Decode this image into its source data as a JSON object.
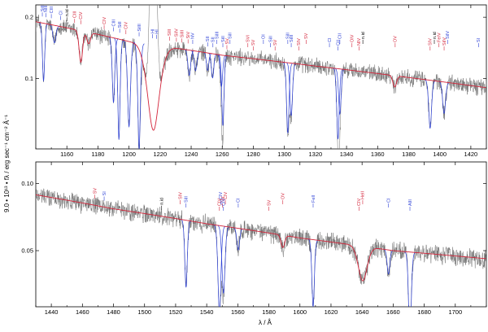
{
  "figure": {
    "ylabel": "9.0 • 10¹³ • fλ / erg sec⁻¹ cm⁻² Å⁻¹",
    "xlabel": "λ / Å"
  },
  "chart_data": [
    {
      "type": "line",
      "panel": "upper",
      "xlim": [
        1140,
        1430
      ],
      "ylim": [
        0.045,
        0.23
      ],
      "yscale": "log",
      "xticks": [
        1160,
        1180,
        1200,
        1220,
        1240,
        1260,
        1280,
        1300,
        1320,
        1340,
        1360,
        1380,
        1400,
        1420
      ],
      "yticks": [
        0.1,
        0.2
      ],
      "ytick_labels": [
        "0.1",
        "0.2"
      ],
      "colors": {
        "observation": "#6e6e6e",
        "model": "#d4243a",
        "ism": "#2b3fd6"
      },
      "model_anchors": [
        [
          1140,
          0.19
        ],
        [
          1200,
          0.152
        ],
        [
          1260,
          0.13
        ],
        [
          1320,
          0.115
        ],
        [
          1380,
          0.101
        ],
        [
          1430,
          0.09
        ]
      ],
      "absorption_lines": [
        {
          "x": 1145,
          "depth": 0.48,
          "w": 0.8,
          "c": "ism"
        },
        {
          "x": 1152,
          "depth": 0.18,
          "w": 1.0,
          "c": "ism"
        },
        {
          "x": 1169,
          "depth": 0.3,
          "w": 1.2,
          "c": "model"
        },
        {
          "x": 1174,
          "depth": 0.12,
          "w": 1.2,
          "c": "model"
        },
        {
          "x": 1190,
          "depth": 0.52,
          "w": 0.9,
          "c": "ism"
        },
        {
          "x": 1193.5,
          "depth": 0.68,
          "w": 0.9,
          "c": "ism"
        },
        {
          "x": 1200,
          "depth": 0.62,
          "w": 1.1,
          "c": "ism"
        },
        {
          "x": 1206.5,
          "depth": 0.7,
          "w": 1.0,
          "c": "ism"
        },
        {
          "x": 1215.7,
          "depth": 0.62,
          "w": 4.5,
          "c": "model"
        },
        {
          "x": 1238.8,
          "depth": 0.25,
          "w": 0.9,
          "c": "ism"
        },
        {
          "x": 1242.8,
          "depth": 0.2,
          "w": 0.9,
          "c": "ism"
        },
        {
          "x": 1250.6,
          "depth": 0.18,
          "w": 0.8,
          "c": "ism"
        },
        {
          "x": 1253.8,
          "depth": 0.24,
          "w": 0.8,
          "c": "ism"
        },
        {
          "x": 1259.5,
          "depth": 0.3,
          "w": 0.8,
          "c": "ism"
        },
        {
          "x": 1260.4,
          "depth": 0.55,
          "w": 0.8,
          "c": "ism"
        },
        {
          "x": 1302.2,
          "depth": 0.55,
          "w": 0.9,
          "c": "ism"
        },
        {
          "x": 1304.4,
          "depth": 0.45,
          "w": 0.9,
          "c": "ism"
        },
        {
          "x": 1334.5,
          "depth": 0.55,
          "w": 0.9,
          "c": "ism"
        },
        {
          "x": 1335.7,
          "depth": 0.4,
          "w": 0.9,
          "c": "ism"
        },
        {
          "x": 1371,
          "depth": 0.12,
          "w": 1.2,
          "c": "model"
        },
        {
          "x": 1393.8,
          "depth": 0.42,
          "w": 1.0,
          "c": "ism"
        },
        {
          "x": 1402.8,
          "depth": 0.3,
          "w": 1.0,
          "c": "ism"
        }
      ],
      "line_labels": [
        {
          "text": "SiII",
          "x": 1144.2,
          "c": "ism"
        },
        {
          "text": "NIII",
          "x": 1146.5,
          "c": "ism"
        },
        {
          "text": "CIII",
          "x": 1150,
          "c": "ism"
        },
        {
          "text": "CI",
          "x": 1156,
          "c": "ism"
        },
        {
          "text": "n.id",
          "x": 1160,
          "c": "black"
        },
        {
          "text": "CIII",
          "x": 1165,
          "c": "model"
        },
        {
          "text": "CIV",
          "x": 1169,
          "c": "model"
        },
        {
          "text": "CIV",
          "x": 1184,
          "c": "model"
        },
        {
          "text": "CIII",
          "x": 1190,
          "c": "ism"
        },
        {
          "text": "SiII",
          "x": 1194,
          "c": "ism"
        },
        {
          "text": "CIV",
          "x": 1198,
          "c": "model"
        },
        {
          "text": "SiIII",
          "x": 1206.5,
          "c": "ism"
        },
        {
          "text": "HI",
          "x": 1215.2,
          "c": "ism"
        },
        {
          "text": "HI",
          "x": 1217.8,
          "c": "ism"
        },
        {
          "text": "SIII",
          "x": 1226,
          "c": "model"
        },
        {
          "text": "SiIV",
          "x": 1230.5,
          "c": "model"
        },
        {
          "text": "SiIII",
          "x": 1234,
          "c": "model"
        },
        {
          "text": "SiV",
          "x": 1238,
          "c": "model"
        },
        {
          "text": "NV",
          "x": 1241,
          "c": "ism"
        },
        {
          "text": "SII",
          "x": 1250.6,
          "c": "ism"
        },
        {
          "text": "SII",
          "x": 1254,
          "c": "ism"
        },
        {
          "text": "SiIII",
          "x": 1256.5,
          "c": "ism"
        },
        {
          "text": "SiII",
          "x": 1260.4,
          "c": "ism"
        },
        {
          "text": "SV",
          "x": 1263,
          "c": "model"
        },
        {
          "text": "SiII",
          "x": 1265,
          "c": "ism"
        },
        {
          "text": "SVI",
          "x": 1276.5,
          "c": "model"
        },
        {
          "text": "SV",
          "x": 1280,
          "c": "model"
        },
        {
          "text": "OI",
          "x": 1286.5,
          "c": "ism"
        },
        {
          "text": "SiII",
          "x": 1291,
          "c": "ism"
        },
        {
          "text": "SV",
          "x": 1294,
          "c": "model"
        },
        {
          "text": "SiII",
          "x": 1302.2,
          "c": "ism"
        },
        {
          "text": "SiIII",
          "x": 1304.4,
          "c": "ism"
        },
        {
          "text": "SIV",
          "x": 1309.3,
          "c": "model"
        },
        {
          "text": "SV",
          "x": 1314,
          "c": "model"
        },
        {
          "text": "CI",
          "x": 1329,
          "c": "ism"
        },
        {
          "text": "CII",
          "x": 1334.5,
          "c": "ism"
        },
        {
          "text": "CII",
          "x": 1335.7,
          "c": "ism"
        },
        {
          "text": "OIV",
          "x": 1343.5,
          "c": "model"
        },
        {
          "text": "NIV",
          "x": 1348,
          "c": "model"
        },
        {
          "text": "n.id",
          "x": 1350.5,
          "c": "black"
        },
        {
          "text": "OV",
          "x": 1371.3,
          "c": "model"
        },
        {
          "text": "SIV",
          "x": 1393.8,
          "c": "model"
        },
        {
          "text": "n.id",
          "x": 1396.5,
          "c": "black"
        },
        {
          "text": "FeIV",
          "x": 1399.5,
          "c": "model"
        },
        {
          "text": "SiIV",
          "x": 1402.8,
          "c": "model"
        },
        {
          "text": "SiIV",
          "x": 1405,
          "c": "ism"
        },
        {
          "text": "SI",
          "x": 1425,
          "c": "ism"
        }
      ]
    },
    {
      "type": "line",
      "panel": "lower",
      "xlim": [
        1430,
        1720
      ],
      "ylim": [
        0.028,
        0.125
      ],
      "yscale": "log",
      "xticks": [
        1440,
        1460,
        1480,
        1500,
        1520,
        1540,
        1560,
        1580,
        1600,
        1620,
        1640,
        1660,
        1680,
        1700
      ],
      "yticks": [
        0.05,
        0.1
      ],
      "ytick_labels": [
        "0.05",
        "0.10"
      ],
      "colors": {
        "observation": "#6e6e6e",
        "model": "#d4243a",
        "ism": "#2b3fd6"
      },
      "model_anchors": [
        [
          1430,
          0.089
        ],
        [
          1480,
          0.077
        ],
        [
          1540,
          0.066
        ],
        [
          1600,
          0.057
        ],
        [
          1660,
          0.05
        ],
        [
          1720,
          0.046
        ]
      ],
      "absorption_lines": [
        {
          "x": 1526.7,
          "depth": 0.5,
          "w": 0.9,
          "c": "ism"
        },
        {
          "x": 1548.2,
          "depth": 0.6,
          "w": 1.1,
          "c": "ism"
        },
        {
          "x": 1550.8,
          "depth": 0.5,
          "w": 1.1,
          "c": "ism"
        },
        {
          "x": 1560.3,
          "depth": 0.2,
          "w": 0.9,
          "c": "ism"
        },
        {
          "x": 1589,
          "depth": 0.12,
          "w": 1.2,
          "c": "model"
        },
        {
          "x": 1608.5,
          "depth": 0.5,
          "w": 0.9,
          "c": "ism"
        },
        {
          "x": 1640.4,
          "depth": 0.3,
          "w": 3.0,
          "c": "model"
        },
        {
          "x": 1657,
          "depth": 0.22,
          "w": 0.9,
          "c": "ism"
        },
        {
          "x": 1670.8,
          "depth": 0.6,
          "w": 1.0,
          "c": "ism"
        }
      ],
      "line_labels": [
        {
          "text": "SV",
          "x": 1468,
          "c": "model"
        },
        {
          "text": "SI",
          "x": 1474,
          "c": "ism"
        },
        {
          "text": "n.id",
          "x": 1511,
          "c": "black"
        },
        {
          "text": "SIV",
          "x": 1523,
          "c": "model"
        },
        {
          "text": "SiII",
          "x": 1526.7,
          "c": "ism"
        },
        {
          "text": "CIV",
          "x": 1548.2,
          "c": "model"
        },
        {
          "text": "CIV",
          "x": 1549,
          "c": "ism"
        },
        {
          "text": "NV",
          "x": 1550.2,
          "c": "model"
        },
        {
          "text": "CIV",
          "x": 1550.8,
          "c": "ism"
        },
        {
          "text": "CIV",
          "x": 1552,
          "c": "model"
        },
        {
          "text": "CI",
          "x": 1560.3,
          "c": "ism"
        },
        {
          "text": "SV",
          "x": 1580,
          "c": "model"
        },
        {
          "text": "OV",
          "x": 1589,
          "c": "model"
        },
        {
          "text": "FeII",
          "x": 1608.5,
          "c": "ism"
        },
        {
          "text": "CIV",
          "x": 1638,
          "c": "model"
        },
        {
          "text": "HeII",
          "x": 1640.4,
          "c": "model"
        },
        {
          "text": "CI",
          "x": 1657,
          "c": "ism"
        },
        {
          "text": "AlII",
          "x": 1670.8,
          "c": "ism"
        }
      ]
    }
  ]
}
